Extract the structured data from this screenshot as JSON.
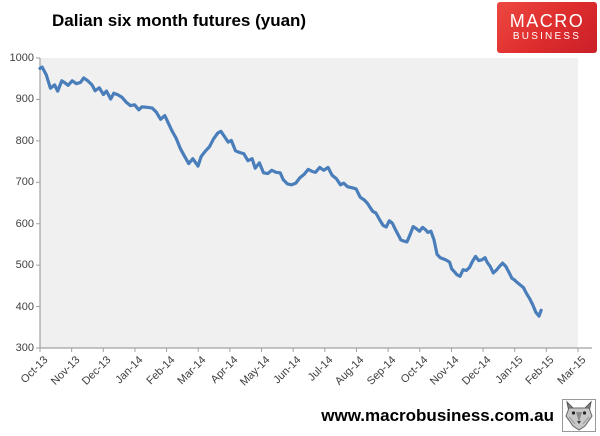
{
  "header": {
    "title": "Dalian six month futures (yuan)"
  },
  "logo": {
    "line1": "MACRO",
    "line2": "BUSINESS"
  },
  "footer": {
    "url_text": "www.macrobusiness.com.au",
    "wolf_icon": "wolf-head"
  },
  "colors": {
    "line": "#4a7ebb",
    "plot_bg": "#f0f0f0",
    "axis": "#a0a0a0",
    "tick_label": "#3f3f3f",
    "logo_red": "#d9262c"
  },
  "chart_data": {
    "type": "line",
    "title": "Dalian six month futures (yuan)",
    "xlabel": "",
    "ylabel": "",
    "ylim": [
      300,
      1000
    ],
    "y_ticks": [
      1000,
      900,
      800,
      700,
      600,
      500,
      400,
      300
    ],
    "x_tick_labels": [
      "Oct-13",
      "Nov-13",
      "Dec-13",
      "Jan-14",
      "Feb-14",
      "Mar-14",
      "Apr-14",
      "May-14",
      "Jun-14",
      "Jul-14",
      "Aug-14",
      "Sep-14",
      "Oct-14",
      "Nov-14",
      "Dec-14",
      "Jan-15",
      "Feb-15",
      "Mar-15"
    ],
    "grid": false,
    "legend": "none",
    "series": [
      {
        "name": "Dalian six month futures (yuan)",
        "points": [
          [
            "2013-10-01",
            975
          ],
          [
            "2013-10-03",
            978
          ],
          [
            "2013-10-07",
            960
          ],
          [
            "2013-10-11",
            927
          ],
          [
            "2013-10-15",
            935
          ],
          [
            "2013-10-18",
            920
          ],
          [
            "2013-10-22",
            945
          ],
          [
            "2013-10-25",
            940
          ],
          [
            "2013-10-28",
            934
          ],
          [
            "2013-11-01",
            945
          ],
          [
            "2013-11-05",
            938
          ],
          [
            "2013-11-09",
            941
          ],
          [
            "2013-11-12",
            952
          ],
          [
            "2013-11-16",
            945
          ],
          [
            "2013-11-20",
            935
          ],
          [
            "2013-11-23",
            921
          ],
          [
            "2013-11-27",
            928
          ],
          [
            "2013-12-01",
            912
          ],
          [
            "2013-12-04",
            920
          ],
          [
            "2013-12-08",
            901
          ],
          [
            "2013-12-11",
            915
          ],
          [
            "2013-12-15",
            911
          ],
          [
            "2013-12-19",
            905
          ],
          [
            "2013-12-23",
            893
          ],
          [
            "2013-12-27",
            885
          ],
          [
            "2013-12-31",
            887
          ],
          [
            "2014-01-04",
            875
          ],
          [
            "2014-01-07",
            882
          ],
          [
            "2014-01-12",
            881
          ],
          [
            "2014-01-17",
            879
          ],
          [
            "2014-01-21",
            869
          ],
          [
            "2014-01-25",
            852
          ],
          [
            "2014-01-29",
            861
          ],
          [
            "2014-02-02",
            840
          ],
          [
            "2014-02-05",
            824
          ],
          [
            "2014-02-09",
            806
          ],
          [
            "2014-02-13",
            781
          ],
          [
            "2014-02-17",
            763
          ],
          [
            "2014-02-21",
            745
          ],
          [
            "2014-02-25",
            757
          ],
          [
            "2014-03-02",
            739
          ],
          [
            "2014-03-05",
            762
          ],
          [
            "2014-03-09",
            775
          ],
          [
            "2014-03-13",
            786
          ],
          [
            "2014-03-17",
            805
          ],
          [
            "2014-03-21",
            819
          ],
          [
            "2014-03-24",
            823
          ],
          [
            "2014-03-28",
            808
          ],
          [
            "2014-03-31",
            797
          ],
          [
            "2014-04-03",
            801
          ],
          [
            "2014-04-07",
            776
          ],
          [
            "2014-04-11",
            772
          ],
          [
            "2014-04-15",
            769
          ],
          [
            "2014-04-19",
            752
          ],
          [
            "2014-04-23",
            757
          ],
          [
            "2014-04-26",
            734
          ],
          [
            "2014-04-30",
            747
          ],
          [
            "2014-05-04",
            723
          ],
          [
            "2014-05-08",
            721
          ],
          [
            "2014-05-12",
            729
          ],
          [
            "2014-05-16",
            724
          ],
          [
            "2014-05-20",
            723
          ],
          [
            "2014-05-23",
            706
          ],
          [
            "2014-05-27",
            696
          ],
          [
            "2014-05-31",
            694
          ],
          [
            "2014-06-04",
            698
          ],
          [
            "2014-06-08",
            711
          ],
          [
            "2014-06-12",
            719
          ],
          [
            "2014-06-16",
            731
          ],
          [
            "2014-06-20",
            726
          ],
          [
            "2014-06-23",
            724
          ],
          [
            "2014-06-27",
            736
          ],
          [
            "2014-07-01",
            729
          ],
          [
            "2014-07-05",
            736
          ],
          [
            "2014-07-09",
            717
          ],
          [
            "2014-07-13",
            709
          ],
          [
            "2014-07-17",
            694
          ],
          [
            "2014-07-20",
            698
          ],
          [
            "2014-07-24",
            689
          ],
          [
            "2014-07-28",
            687
          ],
          [
            "2014-08-01",
            684
          ],
          [
            "2014-08-05",
            664
          ],
          [
            "2014-08-09",
            657
          ],
          [
            "2014-08-12",
            649
          ],
          [
            "2014-08-14",
            641
          ],
          [
            "2014-08-17",
            630
          ],
          [
            "2014-08-20",
            626
          ],
          [
            "2014-08-24",
            608
          ],
          [
            "2014-08-27",
            596
          ],
          [
            "2014-08-30",
            592
          ],
          [
            "2014-09-02",
            607
          ],
          [
            "2014-09-05",
            601
          ],
          [
            "2014-09-08",
            585
          ],
          [
            "2014-09-11",
            571
          ],
          [
            "2014-09-13",
            561
          ],
          [
            "2014-09-16",
            558
          ],
          [
            "2014-09-19",
            556
          ],
          [
            "2014-09-22",
            574
          ],
          [
            "2014-09-25",
            593
          ],
          [
            "2014-09-28",
            588
          ],
          [
            "2014-10-01",
            582
          ],
          [
            "2014-10-04",
            591
          ],
          [
            "2014-10-07",
            585
          ],
          [
            "2014-10-09",
            579
          ],
          [
            "2014-10-12",
            582
          ],
          [
            "2014-10-15",
            561
          ],
          [
            "2014-10-18",
            526
          ],
          [
            "2014-10-21",
            518
          ],
          [
            "2014-10-24",
            515
          ],
          [
            "2014-10-27",
            512
          ],
          [
            "2014-10-30",
            507
          ],
          [
            "2014-11-01",
            491
          ],
          [
            "2014-11-04",
            483
          ],
          [
            "2014-11-06",
            477
          ],
          [
            "2014-11-09",
            473
          ],
          [
            "2014-11-12",
            489
          ],
          [
            "2014-11-15",
            487
          ],
          [
            "2014-11-18",
            494
          ],
          [
            "2014-11-21",
            509
          ],
          [
            "2014-11-24",
            521
          ],
          [
            "2014-11-27",
            511
          ],
          [
            "2014-11-30",
            513
          ],
          [
            "2014-12-03",
            518
          ],
          [
            "2014-12-05",
            507
          ],
          [
            "2014-12-08",
            497
          ],
          [
            "2014-12-11",
            481
          ],
          [
            "2014-12-14",
            488
          ],
          [
            "2014-12-17",
            497
          ],
          [
            "2014-12-20",
            505
          ],
          [
            "2014-12-23",
            497
          ],
          [
            "2014-12-26",
            483
          ],
          [
            "2014-12-29",
            468
          ],
          [
            "2014-12-31",
            465
          ],
          [
            "2015-01-03",
            458
          ],
          [
            "2015-01-06",
            452
          ],
          [
            "2015-01-09",
            446
          ],
          [
            "2015-01-12",
            431
          ],
          [
            "2015-01-15",
            419
          ],
          [
            "2015-01-18",
            404
          ],
          [
            "2015-01-21",
            386
          ],
          [
            "2015-01-24",
            377
          ],
          [
            "2015-01-26",
            391
          ]
        ]
      }
    ]
  }
}
